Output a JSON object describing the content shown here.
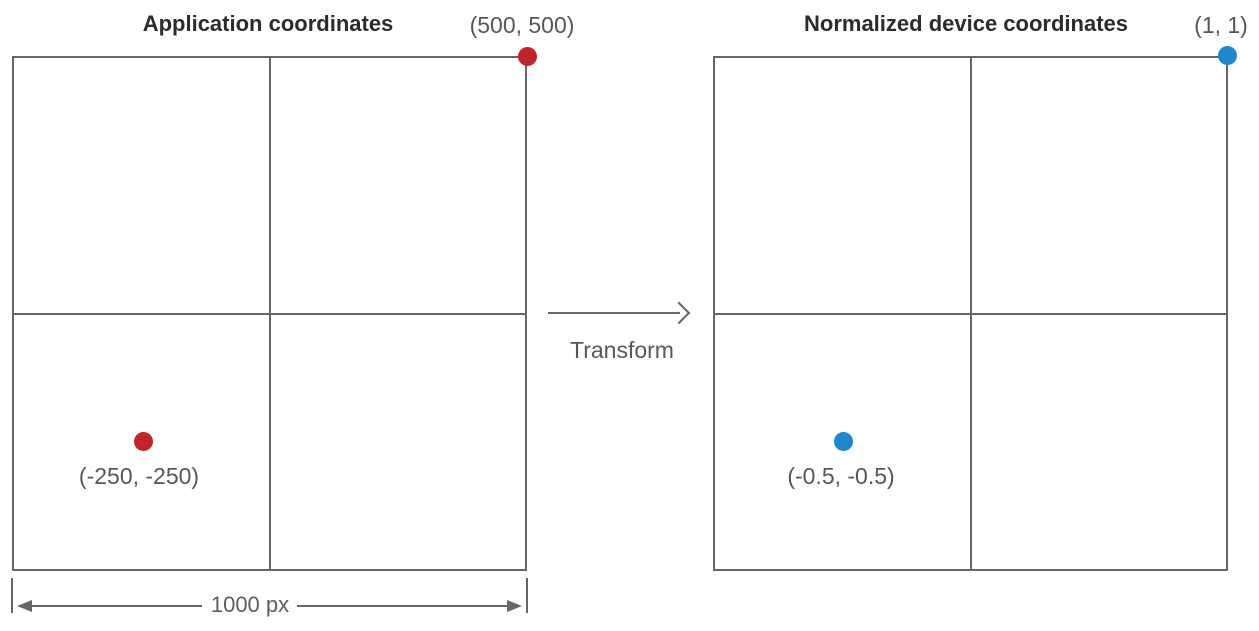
{
  "colors": {
    "line_gray": "#666666",
    "label_gray": "#57575a",
    "title_dark": "#2c2c2e",
    "point_red": "#c2242a",
    "point_blue": "#1f87cc"
  },
  "left_panel": {
    "title": "Application coordinates",
    "corner_point": {
      "label": "(500, 500)",
      "color": "#c2242a"
    },
    "inner_point": {
      "label": "(-250, -250)",
      "color": "#c2242a"
    },
    "dimension": {
      "label": "1000 px"
    }
  },
  "transform_arrow": {
    "label": "Transform"
  },
  "right_panel": {
    "title": "Normalized device coordinates",
    "corner_point": {
      "label": "(1, 1)",
      "color": "#1f87cc"
    },
    "inner_point": {
      "label": "(-0.5, -0.5)",
      "color": "#1f87cc"
    }
  }
}
